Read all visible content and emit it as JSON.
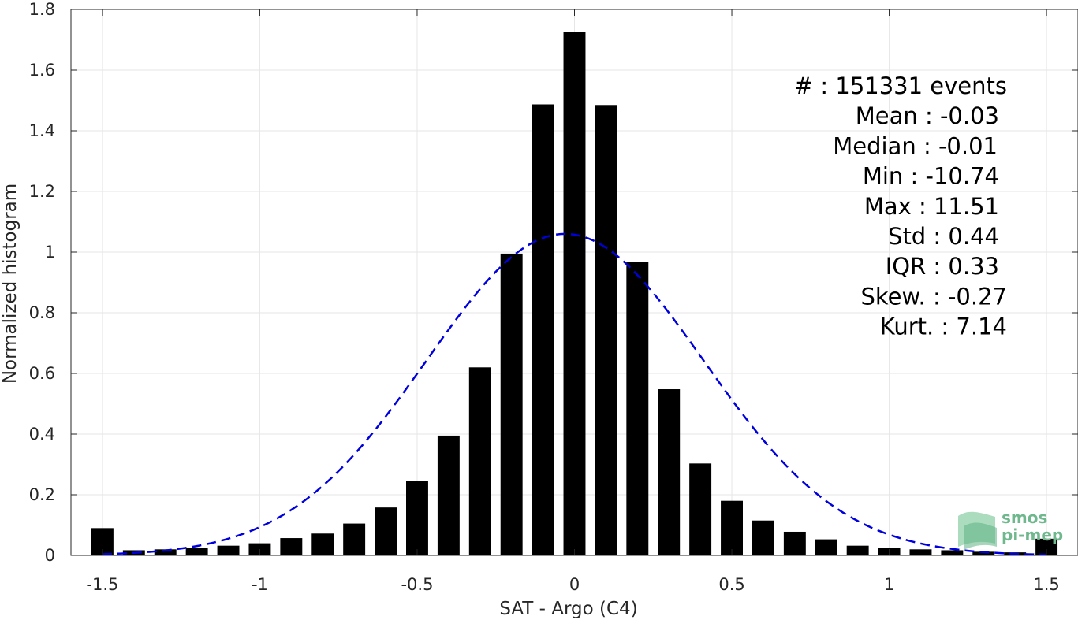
{
  "chart_data": {
    "type": "bar",
    "xlabel": "SAT - Argo (C4)",
    "ylabel": "Normalized histogram",
    "xlim": [
      -1.6,
      1.6
    ],
    "ylim": [
      0,
      1.8
    ],
    "xticks": [
      -1.5,
      -1,
      -0.5,
      0,
      0.5,
      1,
      1.5
    ],
    "xtick_labels": [
      "-1.5",
      "-1",
      "-0.5",
      "0",
      "0.5",
      "1",
      "1.5"
    ],
    "yticks": [
      0,
      0.2,
      0.4,
      0.6,
      0.8,
      1,
      1.2,
      1.4,
      1.6,
      1.8
    ],
    "ytick_labels": [
      "0",
      "0.2",
      "0.4",
      "0.6",
      "0.8",
      "1",
      "1.2",
      "1.4",
      "1.6",
      "1.8"
    ],
    "grid": true,
    "bar_color": "#000000",
    "bar_width": 0.07,
    "x": [
      -1.5,
      -1.4,
      -1.3,
      -1.2,
      -1.1,
      -1.0,
      -0.9,
      -0.8,
      -0.7,
      -0.6,
      -0.5,
      -0.4,
      -0.3,
      -0.2,
      -0.1,
      0.0,
      0.1,
      0.2,
      0.3,
      0.4,
      0.5,
      0.6,
      0.7,
      0.8,
      0.9,
      1.0,
      1.1,
      1.2,
      1.3,
      1.4,
      1.5
    ],
    "values": [
      0.09,
      0.017,
      0.02,
      0.025,
      0.032,
      0.04,
      0.057,
      0.072,
      0.105,
      0.158,
      0.245,
      0.395,
      0.62,
      0.995,
      1.487,
      1.725,
      1.485,
      0.968,
      0.548,
      0.303,
      0.18,
      0.115,
      0.078,
      0.053,
      0.032,
      0.025,
      0.02,
      0.017,
      0.012,
      0.01,
      0.055
    ],
    "fit_curve": {
      "type": "gaussian",
      "mean": -0.03,
      "std": 0.44,
      "peak": 1.06,
      "color": "#0000dd",
      "style": "dashed",
      "x_range": [
        -1.5,
        1.5
      ]
    },
    "annotations": [
      "#  : 151331 events",
      "Mean : -0.03",
      "Median : -0.01",
      "Min : -10.74",
      "Max : 11.51",
      "Std : 0.44",
      "IQR : 0.33",
      "Skew. : -0.27",
      "Kurt. : 7.14"
    ]
  },
  "logo": {
    "line1": "smos",
    "line2": "pi-mep",
    "color": "#6fb88d"
  }
}
